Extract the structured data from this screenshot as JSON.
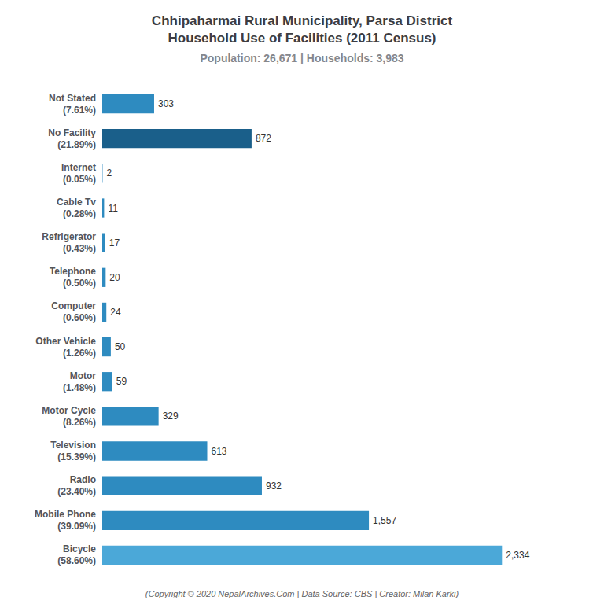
{
  "chart_data": {
    "type": "bar",
    "orientation": "horizontal",
    "title": "Chhipaharmai Rural Municipality, Parsa District\nHousehold Use of Facilities (2011 Census)",
    "subtitle": "Population: 26,671 | Households: 3,983",
    "annotations": [
      "(Copyright © 2020 NepalArchives.Com | Data Source: CBS | Creator: Milan Karki)"
    ],
    "categories": [
      "Not Stated\n(7.61%)",
      "No Facility\n(21.89%)",
      "Internet\n(0.05%)",
      "Cable Tv\n(0.28%)",
      "Refrigerator\n(0.43%)",
      "Telephone\n(0.50%)",
      "Computer\n(0.60%)",
      "Other Vehicle\n(1.26%)",
      "Motor\n(1.48%)",
      "Motor Cycle\n(8.26%)",
      "Television\n(15.39%)",
      "Radio\n(23.40%)",
      "Mobile Phone\n(39.09%)",
      "Bicycle\n(58.60%)"
    ],
    "values": [
      303,
      872,
      2,
      11,
      17,
      20,
      24,
      50,
      59,
      329,
      613,
      932,
      1557,
      2334
    ],
    "value_labels": [
      "303",
      "872",
      "2",
      "11",
      "17",
      "20",
      "24",
      "50",
      "59",
      "329",
      "613",
      "932",
      "1,557",
      "2,334"
    ],
    "colors": [
      "#2e8bc0",
      "#1a5f8a",
      "#2e8bc0",
      "#2e8bc0",
      "#2e8bc0",
      "#2e8bc0",
      "#2e8bc0",
      "#2e8bc0",
      "#2e8bc0",
      "#2e8bc0",
      "#2e8bc0",
      "#2e8bc0",
      "#2e8bc0",
      "#4ba8d8"
    ],
    "xlim": [
      0,
      2700
    ],
    "data_labels": true,
    "tick_labels": "y",
    "grid": false
  }
}
